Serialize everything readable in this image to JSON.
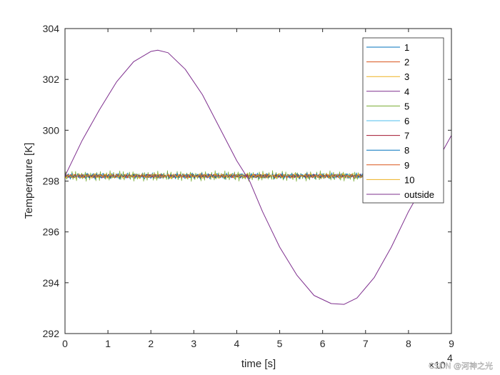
{
  "chart_data": {
    "type": "line",
    "xlabel": "time [s]",
    "ylabel": "Temperature [K]",
    "xlim": [
      0,
      90000
    ],
    "ylim": [
      292,
      304
    ],
    "x_ticks": [
      0,
      10000,
      20000,
      30000,
      40000,
      50000,
      60000,
      70000,
      80000,
      90000
    ],
    "x_tick_labels": [
      "0",
      "1",
      "2",
      "3",
      "4",
      "5",
      "6",
      "7",
      "8",
      "9"
    ],
    "x_exponent_label": "×10",
    "x_exponent_power": "4",
    "y_ticks": [
      292,
      294,
      296,
      298,
      300,
      302,
      304
    ],
    "y_tick_labels": [
      "292",
      "294",
      "296",
      "298",
      "300",
      "302",
      "304"
    ],
    "grid": false,
    "legend_position": "top-right",
    "outside_curve": {
      "name": "outside",
      "x": [
        0,
        4000,
        8000,
        12000,
        16000,
        20000,
        21600,
        24000,
        28000,
        32000,
        36000,
        40000,
        43000,
        46000,
        50000,
        54000,
        58000,
        62000,
        65000,
        68000,
        72000,
        76000,
        80000,
        84000,
        86400,
        90000
      ],
      "y": [
        298.2,
        299.6,
        300.8,
        301.9,
        302.7,
        303.1,
        303.15,
        303.05,
        302.4,
        301.4,
        300.1,
        298.8,
        298.0,
        296.8,
        295.4,
        294.3,
        293.5,
        293.18,
        293.15,
        293.4,
        294.2,
        295.4,
        296.8,
        298.0,
        298.7,
        299.8
      ]
    },
    "zone_series": {
      "base_value": 298.2,
      "x_end": 86400,
      "names": [
        "1",
        "2",
        "3",
        "4",
        "5",
        "6",
        "7",
        "8",
        "9",
        "10"
      ],
      "amplitudes": [
        0.08,
        0.07,
        0.09,
        0.06,
        0.22,
        0.05,
        0.08,
        0.12,
        0.07,
        0.1
      ],
      "colors": [
        "#0072BD",
        "#D95319",
        "#EDB120",
        "#7E2F8E",
        "#77AC30",
        "#4DBEEE",
        "#A2142F",
        "#0072BD",
        "#D95319",
        "#EDB120"
      ]
    },
    "legend_entries": [
      {
        "name": "1",
        "color": "#0072BD"
      },
      {
        "name": "2",
        "color": "#D95319"
      },
      {
        "name": "3",
        "color": "#EDB120"
      },
      {
        "name": "4",
        "color": "#7E2F8E"
      },
      {
        "name": "5",
        "color": "#77AC30"
      },
      {
        "name": "6",
        "color": "#4DBEEE"
      },
      {
        "name": "7",
        "color": "#A2142F"
      },
      {
        "name": "8",
        "color": "#0072BD"
      },
      {
        "name": "9",
        "color": "#D95319"
      },
      {
        "name": "10",
        "color": "#EDB120"
      },
      {
        "name": "outside",
        "color": "#7E2F8E"
      }
    ]
  },
  "watermark": "CSDN @河神之光"
}
